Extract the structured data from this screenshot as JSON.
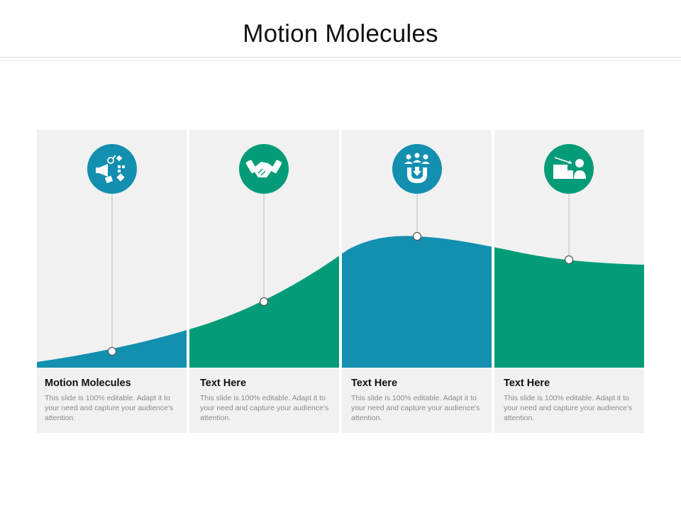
{
  "title": "Motion Molecules",
  "colors": {
    "blue": "#138FB0",
    "green": "#049C78",
    "panel": "#F1F1F1"
  },
  "columns": [
    {
      "heading": "Motion Molecules",
      "body": "This slide is 100% editable. Adapt it to your need and capture your audience's attention.",
      "icon": "marketing-megaphone-icon",
      "color": "blue"
    },
    {
      "heading": "Text Here",
      "body": "This slide is 100% editable. Adapt it to your need and capture your audience's attention.",
      "icon": "handshake-icon",
      "color": "green"
    },
    {
      "heading": "Text Here",
      "body": "This slide is 100% editable. Adapt it to your need and capture your audience's attention.",
      "icon": "customer-magnet-icon",
      "color": "blue"
    },
    {
      "heading": "Text Here",
      "body": "This slide is 100% editable. Adapt it to your need and capture your audience's attention.",
      "icon": "presentation-board-icon",
      "color": "green"
    }
  ]
}
